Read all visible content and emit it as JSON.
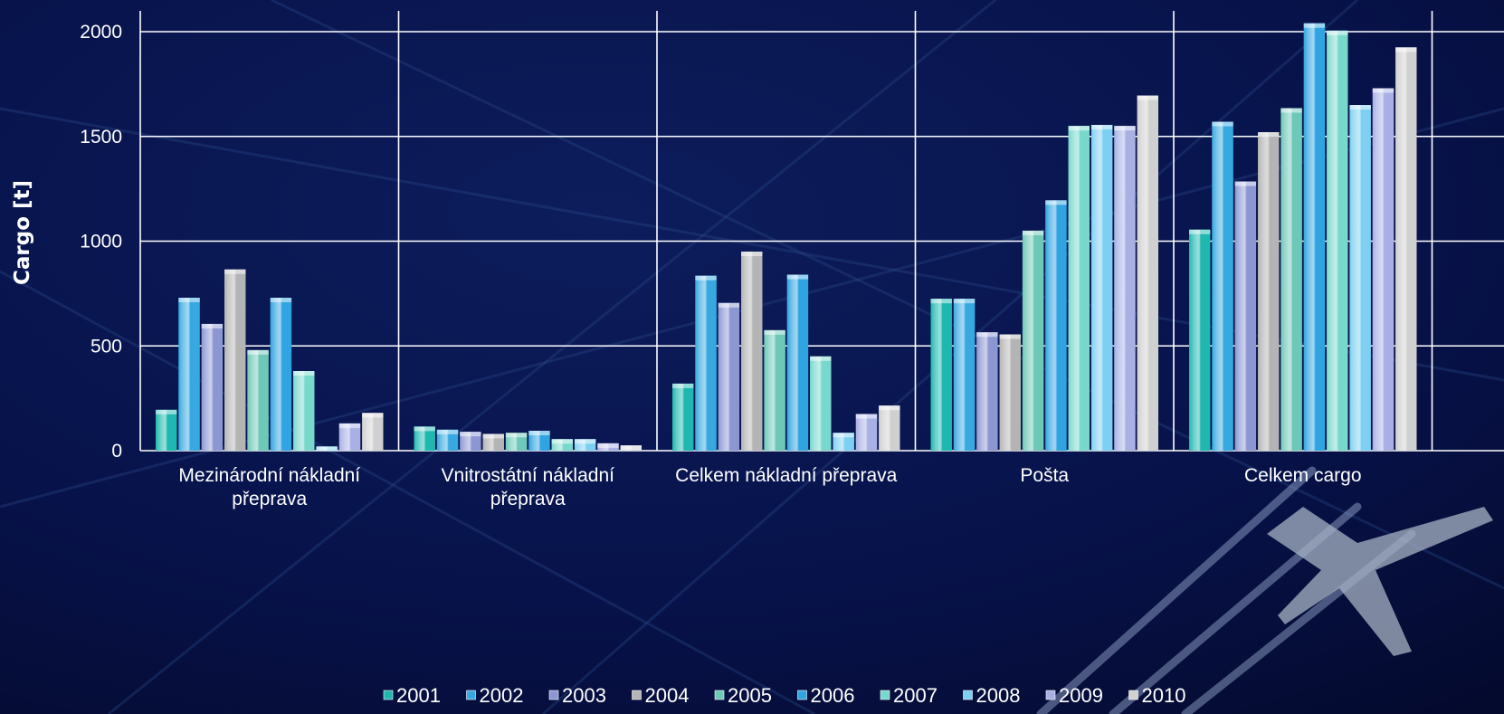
{
  "chart_data": {
    "type": "bar",
    "title": "",
    "xlabel": "",
    "ylabel": "Cargo [t]",
    "ylim": [
      0,
      2000
    ],
    "yticks": [
      0,
      500,
      1000,
      1500,
      2000
    ],
    "grid": true,
    "legend_position": "bottom",
    "categories": [
      [
        "Mezinárodní nákladní",
        "přeprava"
      ],
      [
        "Vnitrostátní nákladní",
        "přeprava"
      ],
      [
        "Celkem nákladní přeprava"
      ],
      [
        "Pošta"
      ],
      [
        "Celkem cargo"
      ]
    ],
    "series": [
      {
        "name": "2001",
        "color": "#1fb8b0",
        "values": [
          195,
          115,
          320,
          725,
          1055
        ]
      },
      {
        "name": "2002",
        "color": "#37a9e0",
        "values": [
          730,
          100,
          835,
          725,
          1570
        ]
      },
      {
        "name": "2003",
        "color": "#8c96d2",
        "values": [
          605,
          90,
          705,
          565,
          1285
        ]
      },
      {
        "name": "2004",
        "color": "#b4b4b4",
        "values": [
          865,
          80,
          950,
          555,
          1520
        ]
      },
      {
        "name": "2005",
        "color": "#6ec8b8",
        "values": [
          480,
          85,
          575,
          1050,
          1635
        ]
      },
      {
        "name": "2006",
        "color": "#30a4e0",
        "values": [
          730,
          95,
          840,
          1195,
          2040
        ]
      },
      {
        "name": "2007",
        "color": "#79d8cc",
        "values": [
          380,
          55,
          450,
          1550,
          2005
        ]
      },
      {
        "name": "2008",
        "color": "#7ed0f2",
        "values": [
          20,
          55,
          85,
          1555,
          1650
        ]
      },
      {
        "name": "2009",
        "color": "#a8b0e4",
        "values": [
          130,
          35,
          175,
          1550,
          1730
        ]
      },
      {
        "name": "2010",
        "color": "#d0d0d0",
        "values": [
          180,
          25,
          215,
          1695,
          1925
        ]
      }
    ]
  }
}
